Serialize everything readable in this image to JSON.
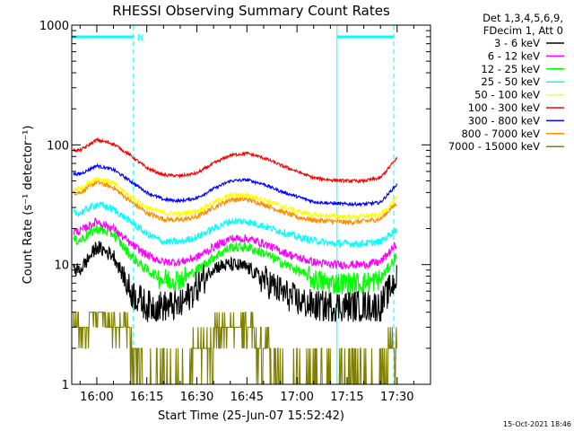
{
  "chart_data": {
    "type": "line",
    "title": "RHESSI Observing Summary Count Rates",
    "xlabel": "Start Time (25-Jun-07 15:52:42)",
    "ylabel": "Count Rate (s⁻¹ detector⁻¹)",
    "yscale": "log",
    "ylim": [
      1,
      1000
    ],
    "xlim_minutes": [
      -7.5,
      100
    ],
    "x_ticks": [
      {
        "label": "16:00",
        "min": 0
      },
      {
        "label": "16:15",
        "min": 15
      },
      {
        "label": "16:30",
        "min": 30
      },
      {
        "label": "16:45",
        "min": 45
      },
      {
        "label": "17:00",
        "min": 60
      },
      {
        "label": "17:15",
        "min": 75
      },
      {
        "label": "17:30",
        "min": 90
      }
    ],
    "y_ticks": [
      {
        "label": "1",
        "v": 1
      },
      {
        "label": "10",
        "v": 10
      },
      {
        "label": "100",
        "v": 100
      },
      {
        "label": "1000",
        "v": 1000
      }
    ],
    "legend_header": [
      "Det 1,3,4,5,6,9,",
      "FDecim 1, Att 0"
    ],
    "legend_position": "right",
    "timestamp": "15-Oct-2021 18:46",
    "bars": [
      {
        "start": -7.5,
        "end": 11,
        "label": "N"
      },
      {
        "start": 72,
        "end": 89,
        "label": ""
      }
    ],
    "dashed_lines_min": [
      11,
      89
    ],
    "solid_lines_min": [
      -7.5,
      72
    ],
    "x_samples_min": [
      -5,
      0,
      5,
      10,
      15,
      20,
      25,
      30,
      35,
      40,
      45,
      50,
      55,
      60,
      65,
      70,
      75,
      80,
      85,
      90
    ],
    "series": [
      {
        "name": "3 - 6 keV",
        "color": "#000000",
        "noise": 0.14,
        "values": [
          9,
          14,
          12,
          6,
          4.5,
          4.5,
          4.5,
          6.5,
          9.5,
          10,
          9.5,
          7.5,
          6,
          5,
          4.5,
          4.5,
          4.5,
          4.5,
          4.5,
          8
        ]
      },
      {
        "name": "6 - 12 keV",
        "color": "#ff00ff",
        "noise": 0.08,
        "values": [
          19,
          23,
          20,
          15,
          12,
          10.5,
          10.5,
          11.5,
          14,
          16.5,
          16.5,
          15,
          13,
          11.5,
          10.5,
          10,
          10,
          10,
          10.5,
          15
        ]
      },
      {
        "name": "12 - 25 keV",
        "color": "#00ff00",
        "noise": 0.1,
        "values": [
          16,
          20,
          18,
          12,
          9,
          7.5,
          7.5,
          9,
          11.5,
          14,
          14,
          12.5,
          10.5,
          9,
          7.5,
          7,
          7,
          7,
          7.5,
          12
        ]
      },
      {
        "name": "25 - 50 keV",
        "color": "#00ffff",
        "noise": 0.07,
        "values": [
          27,
          32,
          29,
          23,
          18,
          15.5,
          15.5,
          17,
          20,
          23,
          23,
          21,
          19,
          17,
          16,
          15,
          15,
          15,
          15.5,
          20
        ]
      },
      {
        "name": "50 - 100 keV",
        "color": "#ffff00",
        "noise": 0.05,
        "values": [
          43,
          53,
          48,
          37,
          30,
          27,
          26.5,
          28,
          33,
          38,
          38,
          35,
          31,
          28,
          26,
          25.5,
          25,
          25.5,
          26,
          36
        ]
      },
      {
        "name": "100 - 300 keV",
        "color": "#ff0000",
        "noise": 0.03,
        "values": [
          90,
          110,
          102,
          82,
          64,
          56,
          55,
          58,
          70,
          82,
          85,
          78,
          68,
          60,
          53,
          51,
          50,
          50,
          53,
          78
        ]
      },
      {
        "name": "300 - 800 keV",
        "color": "#0000ff",
        "noise": 0.03,
        "values": [
          57,
          67,
          62,
          50,
          40,
          35,
          34,
          36,
          43,
          50,
          51,
          47,
          41,
          37,
          33.5,
          32.5,
          32,
          32,
          33,
          47
        ]
      },
      {
        "name": "800 - 7000 keV",
        "color": "#ff8c00",
        "noise": 0.05,
        "values": [
          40,
          49,
          44,
          34,
          27,
          24,
          23.5,
          25,
          30,
          35,
          35,
          32,
          28,
          25,
          23.5,
          23,
          22.5,
          23,
          24,
          33
        ]
      },
      {
        "name": "7000 - 15000 keV",
        "color": "#808000",
        "noise": 0.0,
        "values": [
          3,
          4,
          3,
          2.5,
          1,
          1,
          1,
          2,
          2.5,
          3,
          3,
          2,
          1,
          1,
          1,
          1.5,
          1,
          1,
          1,
          2.5
        ]
      }
    ]
  }
}
